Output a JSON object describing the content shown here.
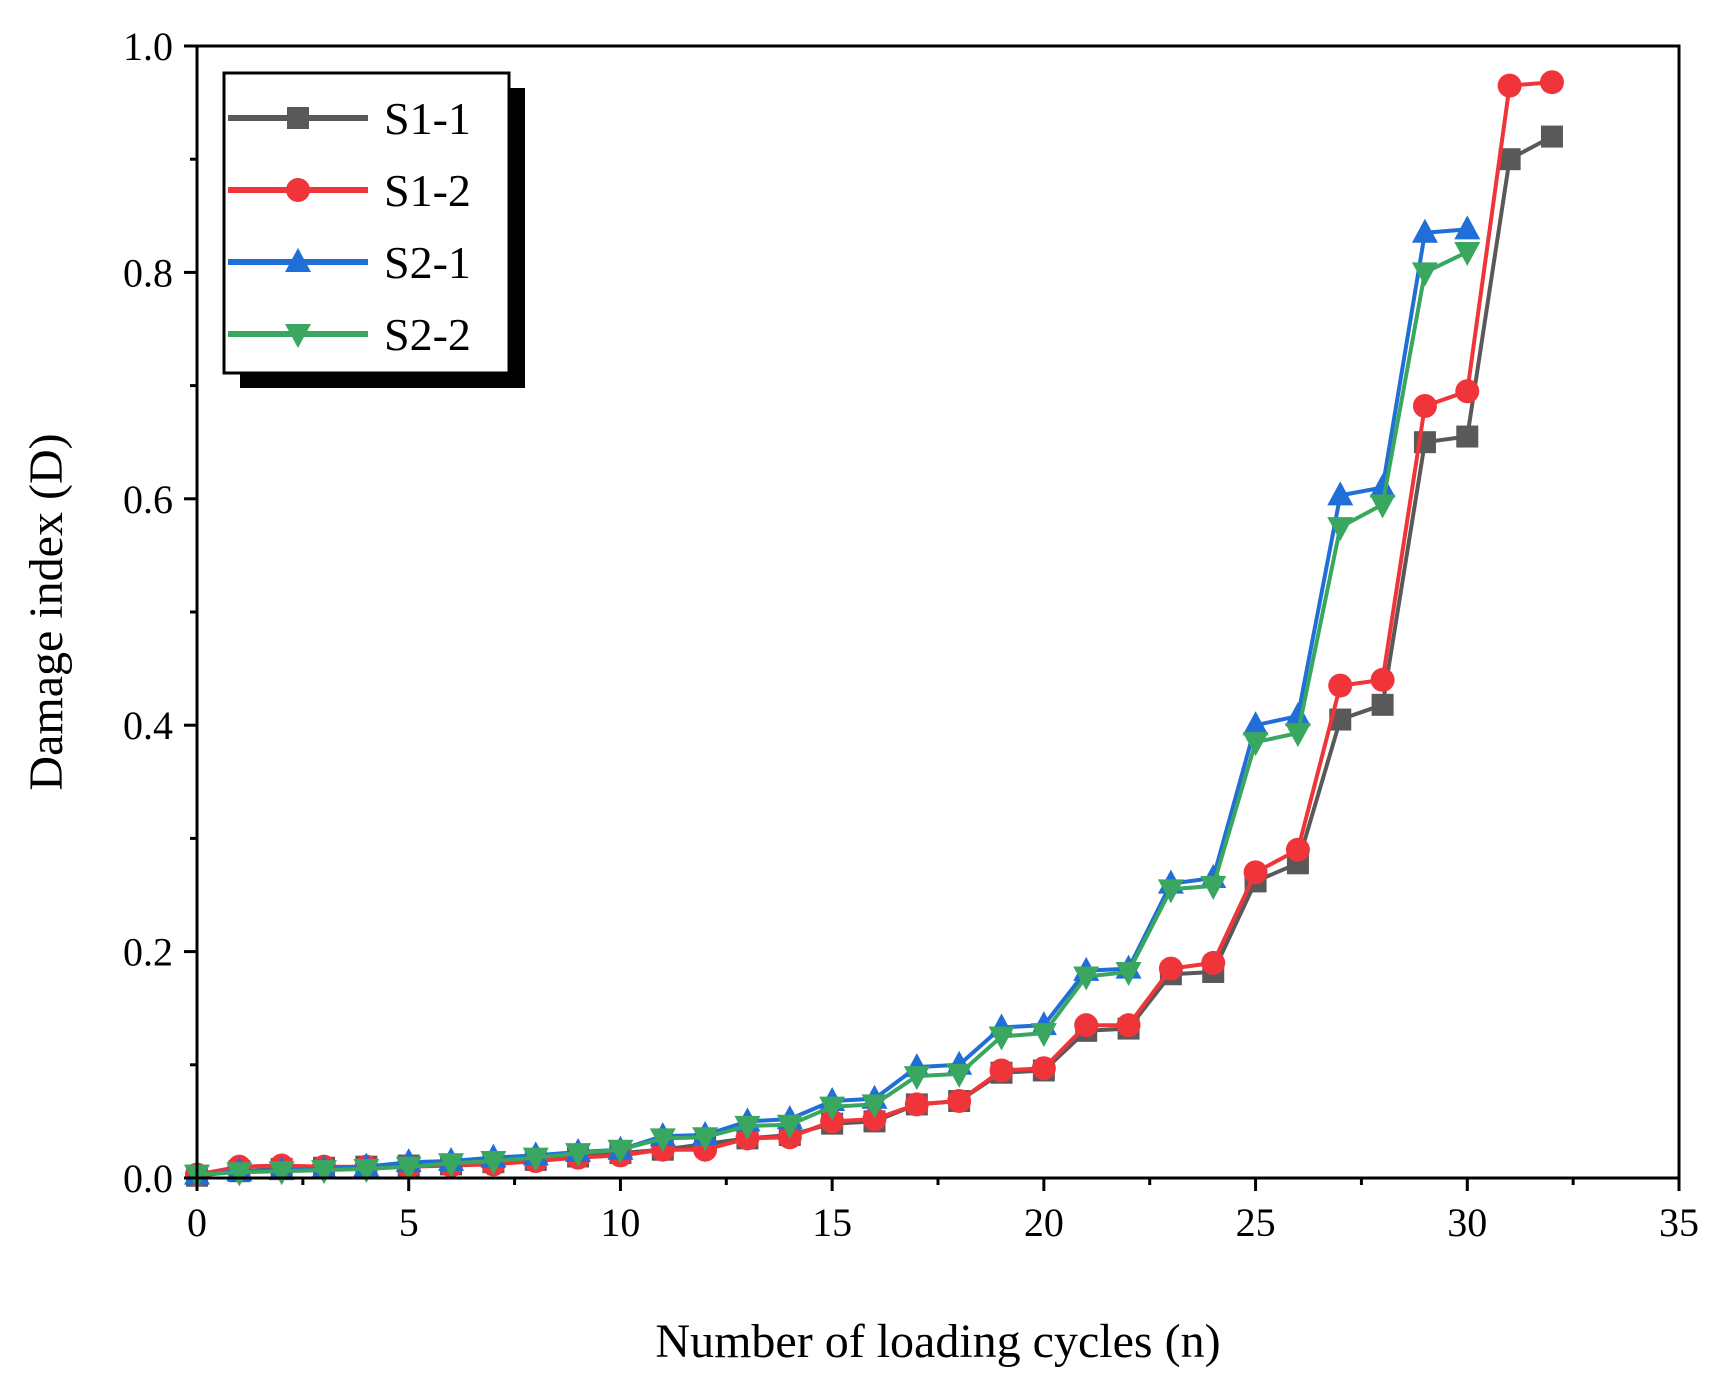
{
  "chart_data": {
    "type": "line",
    "title": "",
    "xlabel": "Number of loading cycles (n)",
    "ylabel": "Damage index (D)",
    "xlim": [
      0,
      35
    ],
    "ylim": [
      0,
      1.0
    ],
    "xticks": [
      0,
      5,
      10,
      15,
      20,
      25,
      30,
      35
    ],
    "xtick_labels": [
      "0",
      "5",
      "10",
      "15",
      "20",
      "25",
      "30",
      "35"
    ],
    "yticks": [
      0,
      0.2,
      0.4,
      0.6,
      0.8,
      1.0
    ],
    "ytick_labels": [
      "0.0",
      "0.2",
      "0.4",
      "0.6",
      "0.8",
      "1.0"
    ],
    "grid": false,
    "legend_position": "top-left",
    "series": [
      {
        "name": "S1-1",
        "color": "#595959",
        "marker": "square",
        "x": [
          0,
          1,
          2,
          3,
          4,
          5,
          6,
          7,
          8,
          9,
          10,
          11,
          12,
          13,
          14,
          15,
          16,
          17,
          18,
          19,
          20,
          21,
          22,
          23,
          24,
          25,
          26,
          27,
          28,
          29,
          30,
          31,
          32
        ],
        "values": [
          0.002,
          0.006,
          0.008,
          0.009,
          0.01,
          0.011,
          0.012,
          0.014,
          0.016,
          0.019,
          0.022,
          0.025,
          0.03,
          0.035,
          0.038,
          0.048,
          0.05,
          0.065,
          0.068,
          0.093,
          0.095,
          0.13,
          0.132,
          0.18,
          0.182,
          0.262,
          0.278,
          0.405,
          0.418,
          0.65,
          0.655,
          0.9,
          0.92
        ]
      },
      {
        "name": "S1-2",
        "color": "#f0353a",
        "marker": "circle",
        "x": [
          0,
          1,
          2,
          3,
          4,
          5,
          6,
          7,
          8,
          9,
          10,
          11,
          12,
          13,
          14,
          15,
          16,
          17,
          18,
          19,
          20,
          21,
          22,
          23,
          24,
          25,
          26,
          27,
          28,
          29,
          30,
          31,
          32
        ],
        "values": [
          0.003,
          0.01,
          0.011,
          0.01,
          0.01,
          0.01,
          0.011,
          0.012,
          0.015,
          0.018,
          0.02,
          0.025,
          0.025,
          0.035,
          0.036,
          0.05,
          0.052,
          0.065,
          0.068,
          0.095,
          0.097,
          0.135,
          0.135,
          0.185,
          0.19,
          0.27,
          0.29,
          0.435,
          0.44,
          0.682,
          0.695,
          0.965,
          0.968
        ]
      },
      {
        "name": "S2-1",
        "color": "#1f6fd6",
        "marker": "triangle-up",
        "x": [
          0,
          1,
          2,
          3,
          4,
          5,
          6,
          7,
          8,
          9,
          10,
          11,
          12,
          13,
          14,
          15,
          16,
          17,
          18,
          19,
          20,
          21,
          22,
          23,
          24,
          25,
          26,
          27,
          28,
          29,
          30
        ],
        "values": [
          0.003,
          0.006,
          0.007,
          0.008,
          0.01,
          0.014,
          0.015,
          0.018,
          0.02,
          0.023,
          0.025,
          0.037,
          0.038,
          0.05,
          0.052,
          0.068,
          0.07,
          0.098,
          0.1,
          0.133,
          0.135,
          0.183,
          0.185,
          0.26,
          0.265,
          0.4,
          0.408,
          0.603,
          0.61,
          0.835,
          0.838
        ]
      },
      {
        "name": "S2-2",
        "color": "#3aa760",
        "marker": "triangle-down",
        "x": [
          0,
          1,
          2,
          3,
          4,
          5,
          6,
          7,
          8,
          9,
          10,
          11,
          12,
          13,
          14,
          15,
          16,
          17,
          18,
          19,
          20,
          21,
          22,
          23,
          24,
          25,
          26,
          27,
          28,
          29,
          30
        ],
        "values": [
          0.003,
          0.005,
          0.006,
          0.007,
          0.008,
          0.01,
          0.013,
          0.015,
          0.018,
          0.022,
          0.025,
          0.035,
          0.036,
          0.046,
          0.047,
          0.063,
          0.065,
          0.09,
          0.092,
          0.125,
          0.128,
          0.178,
          0.182,
          0.255,
          0.258,
          0.385,
          0.393,
          0.575,
          0.595,
          0.8,
          0.818
        ]
      }
    ]
  }
}
